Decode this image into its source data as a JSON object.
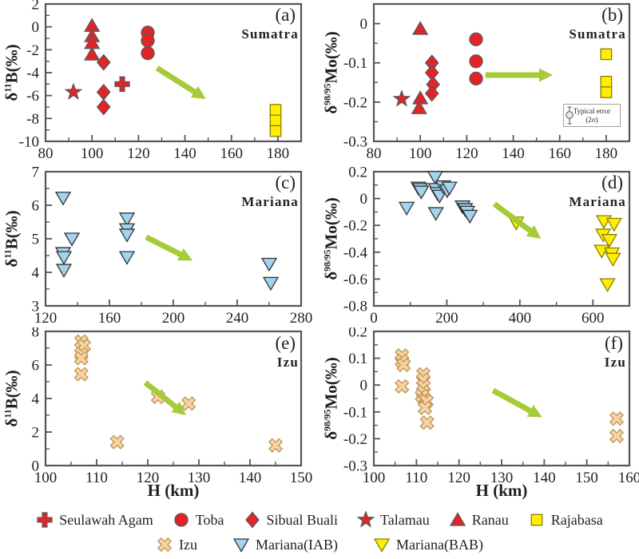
{
  "colors": {
    "red": "#e32426",
    "red_edge": "#58585a",
    "yellow": "#ffee00",
    "yellow_edge": "#8a7d00",
    "blue": "#a2d4ec",
    "blue_edge": "#333335",
    "tan": "#f6d3a0",
    "tan_edge": "#bf9356",
    "green": "#a5cb39",
    "axis": "#55565a",
    "text": "#231f20"
  },
  "error_box": {
    "line1": "Typical error",
    "line2": "(2σ)"
  },
  "legend": {
    "rows": [
      [
        {
          "marker": "plus",
          "color": "red",
          "label": "Seulawah Agam"
        },
        {
          "marker": "circle",
          "color": "red",
          "label": "Toba"
        },
        {
          "marker": "diamond",
          "color": "red",
          "label": "Sibual Buali"
        },
        {
          "marker": "star",
          "color": "red",
          "label": "Talamau"
        },
        {
          "marker": "triangle-up",
          "color": "red",
          "label": "Ranau"
        },
        {
          "marker": "square",
          "color": "yellow",
          "label": "Rajabasa"
        }
      ],
      [
        {
          "marker": "x",
          "color": "tan",
          "label": "Izu"
        },
        {
          "marker": "triangle-down",
          "color": "blue",
          "label": "Mariana(IAB)"
        },
        {
          "marker": "triangle-down",
          "color": "yellow",
          "label": "Mariana(BAB)"
        }
      ]
    ]
  },
  "chart_data": [
    {
      "id": "a",
      "type": "scatter",
      "tag": "(a)",
      "region": "Sumatra",
      "ylabel": {
        "prefix": "δ",
        "sup": "11",
        "main": "B(‰)"
      },
      "xlabel": "H (km)",
      "xlim": [
        80,
        190
      ],
      "ylim": [
        -10,
        2
      ],
      "xticks": [
        "80",
        "100",
        "120",
        "140",
        "160",
        "180"
      ],
      "xminor": 10,
      "yticks": [
        "2",
        "0",
        "-2",
        "-4",
        "-6",
        "-8",
        "-10"
      ],
      "yminor": 1,
      "series": [
        {
          "name": "Ranau",
          "marker": "triangle-up",
          "color": "red",
          "points": [
            [
              100,
              0.1
            ],
            [
              100,
              -0.8
            ],
            [
              100,
              -1.4
            ],
            [
              100,
              -2.4
            ]
          ]
        },
        {
          "name": "Sibual Buali",
          "marker": "diamond",
          "color": "red",
          "points": [
            [
              105,
              -3.1
            ],
            [
              105,
              -5.7
            ],
            [
              105,
              -7.0
            ]
          ]
        },
        {
          "name": "Talamau",
          "marker": "star",
          "color": "red",
          "points": [
            [
              92,
              -5.7
            ]
          ]
        },
        {
          "name": "Seulawah Agam",
          "marker": "plus",
          "color": "red",
          "points": [
            [
              113,
              -5.0
            ]
          ]
        },
        {
          "name": "Toba",
          "marker": "circle",
          "color": "red",
          "points": [
            [
              124,
              -0.5
            ],
            [
              124,
              -1.2
            ],
            [
              124,
              -2.3
            ]
          ]
        },
        {
          "name": "Rajabasa",
          "marker": "square",
          "color": "yellow",
          "points": [
            [
              179,
              -7.25
            ],
            [
              179,
              -8.18
            ],
            [
              179,
              -9.1
            ]
          ]
        }
      ],
      "arrow": {
        "from": [
          128,
          -3.6
        ],
        "to": [
          149,
          -6.3
        ]
      }
    },
    {
      "id": "b",
      "type": "scatter",
      "tag": "(b)",
      "region": "Sumatra",
      "ylabel": {
        "prefix": "δ",
        "sup": "98/95",
        "main": "Mo(‰)"
      },
      "xlabel": "H (km)",
      "xlim": [
        80,
        190
      ],
      "ylim": [
        -0.3,
        0.05
      ],
      "xticks": [
        "80",
        "100",
        "120",
        "140",
        "160",
        "180"
      ],
      "xminor": 10,
      "yticks": [
        "0",
        "-0.1",
        "-0.2",
        "-0.3"
      ],
      "yminor": 0.05,
      "series": [
        {
          "name": "Ranau",
          "marker": "triangle-up",
          "color": "red",
          "points": [
            [
              100,
              -0.013
            ],
            [
              100,
              -0.19
            ],
            [
              99.5,
              -0.215
            ]
          ]
        },
        {
          "name": "Sibual Buali",
          "marker": "diamond",
          "color": "red",
          "points": [
            [
              105,
              -0.1
            ],
            [
              105,
              -0.125
            ],
            [
              105.5,
              -0.155
            ],
            [
              105,
              -0.178
            ]
          ]
        },
        {
          "name": "Talamau",
          "marker": "star",
          "color": "red",
          "points": [
            [
              92,
              -0.192
            ]
          ]
        },
        {
          "name": "Toba",
          "marker": "circle",
          "color": "red",
          "points": [
            [
              124,
              -0.04
            ],
            [
              124,
              -0.096
            ],
            [
              124,
              -0.14
            ]
          ]
        },
        {
          "name": "Rajabasa",
          "marker": "square",
          "color": "yellow",
          "points": [
            [
              180,
              -0.078
            ],
            [
              180,
              -0.148
            ],
            [
              180,
              -0.175
            ]
          ]
        }
      ],
      "arrow": {
        "from": [
          128,
          -0.131
        ],
        "to": [
          157,
          -0.131
        ]
      }
    },
    {
      "id": "c",
      "type": "scatter",
      "tag": "(c)",
      "region": "Mariana",
      "ylabel": {
        "prefix": "δ",
        "sup": "11",
        "main": "B(‰)"
      },
      "xlabel": "H (km)",
      "xlim": [
        120,
        280
      ],
      "ylim": [
        3,
        7
      ],
      "xticks": [
        "120",
        "160",
        "200",
        "240",
        "280"
      ],
      "xminor": 20,
      "yticks": [
        "7",
        "6",
        "5",
        "4",
        "3"
      ],
      "yminor": 0.5,
      "series": [
        {
          "name": "Mariana(IAB)",
          "marker": "triangle-down",
          "color": "blue",
          "points": [
            [
              131,
              6.22
            ],
            [
              136.5,
              5.0
            ],
            [
              131,
              4.57
            ],
            [
              131.5,
              4.45
            ],
            [
              131.5,
              4.07
            ],
            [
              171,
              5.6
            ],
            [
              171,
              5.28
            ],
            [
              171,
              5.12
            ],
            [
              171,
              4.45
            ],
            [
              260,
              4.25
            ],
            [
              261,
              3.68
            ]
          ]
        }
      ],
      "arrow": {
        "from": [
          183,
          5.05
        ],
        "to": [
          212,
          4.35
        ]
      }
    },
    {
      "id": "d",
      "type": "scatter",
      "tag": "(d)",
      "region": "Mariana",
      "ylabel": {
        "prefix": "δ",
        "sup": "98/95",
        "main": "Mo(‰)"
      },
      "xlabel": "H (km)",
      "xlim": [
        0,
        700
      ],
      "ylim": [
        -0.8,
        0.2
      ],
      "xticks": [
        "0",
        "200",
        "400",
        "600"
      ],
      "xminor": 100,
      "yticks": [
        "0.2",
        "0",
        "-0.2",
        "-0.4",
        "-0.6",
        "-0.8"
      ],
      "yminor": 0.1,
      "series": [
        {
          "name": "Mariana(IAB)",
          "marker": "triangle-down",
          "color": "blue",
          "points": [
            [
              90,
              -0.07
            ],
            [
              122,
              0.08
            ],
            [
              127,
              0.07
            ],
            [
              130,
              0.05
            ],
            [
              168,
              0.16
            ],
            [
              170,
              0.07
            ],
            [
              174,
              0.04
            ],
            [
              180,
              0.02
            ],
            [
              190,
              0.09
            ],
            [
              201,
              0.06
            ],
            [
              207,
              0.08
            ],
            [
              170,
              -0.11
            ],
            [
              243,
              -0.06
            ],
            [
              250,
              -0.08
            ],
            [
              256,
              -0.1
            ],
            [
              263,
              -0.13
            ]
          ]
        },
        {
          "name": "Mariana(BAB)",
          "marker": "triangle-down",
          "color": "yellow",
          "points": [
            [
              390,
              -0.18
            ],
            [
              630,
              -0.17
            ],
            [
              658,
              -0.19
            ],
            [
              628,
              -0.27
            ],
            [
              645,
              -0.31
            ],
            [
              624,
              -0.39
            ],
            [
              652,
              -0.41
            ],
            [
              655,
              -0.45
            ],
            [
              640,
              -0.64
            ]
          ]
        }
      ],
      "arrow": {
        "from": [
          330,
          -0.04
        ],
        "to": [
          458,
          -0.3
        ]
      }
    },
    {
      "id": "e",
      "type": "scatter",
      "tag": "(e)",
      "region": "Izu",
      "ylabel": {
        "prefix": "δ",
        "sup": "11",
        "main": "B(‰)"
      },
      "xlabel": "H (km)",
      "xlim": [
        100,
        150
      ],
      "ylim": [
        0,
        8
      ],
      "xticks": [
        "100",
        "110",
        "120",
        "130",
        "140",
        "150"
      ],
      "xminor": 5,
      "yticks": [
        "8",
        "6",
        "4",
        "2",
        "0"
      ],
      "yminor": 1,
      "series": [
        {
          "name": "Izu",
          "marker": "x",
          "color": "tan",
          "points": [
            [
              107,
              7.4
            ],
            [
              107.5,
              7.15
            ],
            [
              107,
              6.65
            ],
            [
              107,
              6.4
            ],
            [
              107,
              5.45
            ],
            [
              114,
              1.4
            ],
            [
              122,
              4.1
            ],
            [
              128,
              3.7
            ],
            [
              145,
              1.2
            ]
          ]
        }
      ],
      "arrow": {
        "from": [
          119.5,
          4.95
        ],
        "to": [
          127.5,
          3.0
        ]
      }
    },
    {
      "id": "f",
      "type": "scatter",
      "tag": "(f)",
      "region": "Izu",
      "ylabel": {
        "prefix": "δ",
        "sup": "98/95",
        "main": "Mo(‰)"
      },
      "xlabel": "H (km)",
      "xlim": [
        100,
        160
      ],
      "ylim": [
        -0.3,
        0.2
      ],
      "xticks": [
        "100",
        "110",
        "120",
        "130",
        "140",
        "150",
        "160"
      ],
      "xminor": 5,
      "yticks": [
        "0.2",
        "0.1",
        "0",
        "-0.1",
        "-0.2",
        "-0.3"
      ],
      "yminor": 0.05,
      "series": [
        {
          "name": "Izu",
          "marker": "x",
          "color": "tan",
          "points": [
            [
              106.6,
              0.11
            ],
            [
              106.6,
              0.09
            ],
            [
              107,
              0.075
            ],
            [
              106.6,
              -0.005
            ],
            [
              111.6,
              0.04
            ],
            [
              111.6,
              0.02
            ],
            [
              111.7,
              -0.005
            ],
            [
              111.6,
              -0.025
            ],
            [
              111.3,
              -0.04
            ],
            [
              112,
              -0.055
            ],
            [
              112.4,
              -0.06
            ],
            [
              112,
              -0.085
            ],
            [
              112.5,
              -0.14
            ],
            [
              157,
              -0.125
            ],
            [
              157,
              -0.19
            ]
          ]
        }
      ],
      "arrow": {
        "from": [
          128,
          -0.02
        ],
        "to": [
          139.5,
          -0.12
        ]
      }
    }
  ]
}
